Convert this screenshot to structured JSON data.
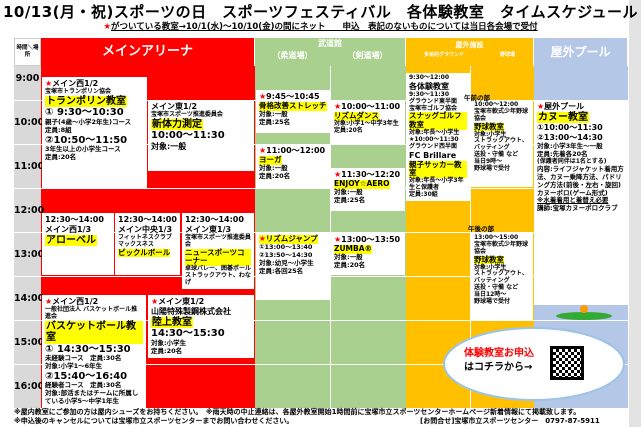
{
  "header": {
    "title": "10/13(月・祝)スポーツの日　スポーツフェスティバル　各体験教室　タイムスケジュール",
    "star": "★",
    "note": "がついている教室→10/1(水)～10/10(金)の間にネット　　申込　表記のないものについては当日各会場で受付"
  },
  "columns": {
    "corner": "時間＼場所",
    "main": "メインアリーナ",
    "budokan": "武道館",
    "judo": "（柔道場）",
    "kendo": "（剣道場）",
    "outdoor": "屋外施設",
    "ground": "多目的グラウンド",
    "baseball": "野球場",
    "pool": "屋外プール"
  },
  "times": [
    "9:00",
    "10:00",
    "11:00",
    "12:00",
    "13:00",
    "14:00",
    "15:00",
    "16:00"
  ],
  "colors": {
    "main": "#ff0000",
    "budokan": "#a9d08e",
    "outdoor": "#ffc000",
    "pool": "#b4c7e7",
    "time": "#d9d9d9",
    "highlight": "#ffff00"
  },
  "events": [
    {
      "star": true,
      "lines": [
        {
          "r": "venue",
          "t": "メイン西1/2"
        },
        {
          "r": "org",
          "t": "宝塚市トランポリン協会"
        },
        {
          "r": "title",
          "t": "トランポリン教室"
        },
        {
          "r": "time",
          "t": "① 9:30～10:30"
        },
        {
          "r": "note",
          "t": "親子(4歳～小学2年生)コース"
        },
        {
          "r": "note",
          "t": "定員:8組"
        },
        {
          "r": "time",
          "t": "②10:50～11:50"
        },
        {
          "r": "note",
          "t": "3年生以上の小学生コース"
        },
        {
          "r": "note",
          "t": "定員:20名"
        }
      ]
    },
    {
      "star": false,
      "lines": [
        {
          "r": "venue",
          "t": "メイン東1/2"
        },
        {
          "r": "org",
          "t": "宝塚市スポーツ推進委員会"
        },
        {
          "r": "title",
          "t": "新体力測定"
        },
        {
          "r": "time",
          "t": "10:00～11:30"
        },
        {
          "r": "lbl",
          "t": "対象:一般"
        }
      ]
    },
    {
      "star": false,
      "lines": [
        {
          "r": "stime",
          "t": "12:30～14:00"
        },
        {
          "r": "venue",
          "t": "メイン西1/3"
        },
        {
          "r": "title",
          "t": "アローベル"
        }
      ]
    },
    {
      "star": false,
      "lines": [
        {
          "r": "stime",
          "t": "12:30～14:00"
        },
        {
          "r": "venue",
          "t": "メイン中央1/3"
        },
        {
          "r": "org",
          "t": "フィットネスクラブマックスネス"
        },
        {
          "r": "stitle",
          "t": "ピックルボール"
        }
      ]
    },
    {
      "star": false,
      "lines": [
        {
          "r": "stime",
          "t": "12:30～14:00"
        },
        {
          "r": "venue",
          "t": "メイン東1/3"
        },
        {
          "r": "org",
          "t": "宝塚市スポーツ推進委員会"
        },
        {
          "r": "stitle",
          "t": "ニュースポーツコーナー"
        },
        {
          "r": "org",
          "t": "卓球バレー、囲碁ボール"
        },
        {
          "r": "org",
          "t": "ストラックアウト、わなげ"
        }
      ]
    },
    {
      "star": true,
      "lines": [
        {
          "r": "venue",
          "t": "メイン西1/2"
        },
        {
          "r": "org",
          "t": "一般社団法人 バスケットボール推進会"
        },
        {
          "r": "title",
          "t": "バスケットボール教室"
        },
        {
          "r": "time",
          "t": "① 14:30～15:30"
        },
        {
          "r": "note",
          "t": "未経験コース　定員:30名"
        },
        {
          "r": "note",
          "t": "対象:小学1～6年生"
        },
        {
          "r": "time",
          "t": "②15:40～16:40"
        },
        {
          "r": "note",
          "t": "経験者コース　定員:30名"
        },
        {
          "r": "note",
          "t": "対象:部活またはチームに所属している小学5～中学1年生"
        }
      ]
    },
    {
      "star": true,
      "lines": [
        {
          "r": "venue",
          "t": "メイン東1/2"
        },
        {
          "r": "lbl",
          "t": "山陽特殊製鋼株式会社"
        },
        {
          "r": "title",
          "t": "陸上教室"
        },
        {
          "r": "time",
          "t": "14:30～15:30"
        },
        {
          "r": "note",
          "t": "対象:小学生"
        },
        {
          "r": "note",
          "t": "定員:20名"
        }
      ]
    },
    {
      "star": true,
      "lines": [
        {
          "r": "stime",
          "t": "9:45～10:45"
        },
        {
          "r": "stitle",
          "t": "骨格改善ストレッチ"
        },
        {
          "r": "note",
          "t": "対象:一般"
        },
        {
          "r": "note",
          "t": "定員:25名"
        }
      ]
    },
    {
      "star": true,
      "lines": [
        {
          "r": "stime",
          "t": "11:00～12:00"
        },
        {
          "r": "stitle",
          "t": "ヨーガ"
        },
        {
          "r": "note",
          "t": "対象:一般"
        },
        {
          "r": "note",
          "t": "定員:20名"
        }
      ]
    },
    {
      "star": true,
      "lines": [
        {
          "r": "stitle",
          "t": "リズムジャンプ"
        },
        {
          "r": "note",
          "t": "①13:00～13:40"
        },
        {
          "r": "note",
          "t": "②13:50～14:30"
        },
        {
          "r": "note",
          "t": "対象:幼児～小学生"
        },
        {
          "r": "note",
          "t": "定員:各回25名"
        }
      ]
    },
    {
      "star": true,
      "lines": [
        {
          "r": "stime",
          "t": "10:00～11:00"
        },
        {
          "r": "stitle",
          "t": "リズムダンス"
        },
        {
          "r": "org",
          "t": "対象:小学1～中学3年生"
        },
        {
          "r": "org",
          "t": "定員:20名"
        }
      ]
    },
    {
      "star": true,
      "lines": [
        {
          "r": "stime",
          "t": "11:30～12:20"
        },
        {
          "r": "stitle",
          "t": "ENJOY☆AERO"
        },
        {
          "r": "note",
          "t": "対象:一般"
        },
        {
          "r": "note",
          "t": "定員:25名"
        }
      ]
    },
    {
      "star": true,
      "lines": [
        {
          "r": "stime",
          "t": "13:00～13:50"
        },
        {
          "r": "stitle",
          "t": "ZUMBA®"
        },
        {
          "r": "note",
          "t": "対象:一般"
        },
        {
          "r": "note",
          "t": "定員:20名"
        }
      ]
    },
    {
      "star": false,
      "lines": [
        {
          "r": "org",
          "t": "9:30～12:00"
        },
        {
          "r": "stime",
          "t": "各体験教室"
        },
        {
          "r": "org",
          "t": "9:30～11:30"
        },
        {
          "r": "org",
          "t": "グラウンド東半面"
        },
        {
          "r": "org",
          "t": "宝塚市ゴルフ協会"
        },
        {
          "r": "stitle",
          "t": "スナッグゴルフ教室"
        },
        {
          "r": "org",
          "t": "対象:年長～小学生"
        },
        {
          "r": "org",
          "t": "★10:00～11:30"
        },
        {
          "r": "org",
          "t": "グラウンド西半面"
        },
        {
          "r": "stime",
          "t": "FC Brillare"
        },
        {
          "r": "stitle",
          "t": "親子サッカー教室"
        },
        {
          "r": "org",
          "t": "対象:年長～小学3年生と保護者"
        },
        {
          "r": "org",
          "t": "定員:30組"
        }
      ]
    },
    {
      "star": false,
      "lines": [
        {
          "r": "org",
          "t": "10:00～12:00"
        },
        {
          "r": "org",
          "t": "宝塚市軟式少年野球協会"
        },
        {
          "r": "stitle",
          "t": "野球教室"
        },
        {
          "r": "org",
          "t": "対象:小学生"
        },
        {
          "r": "org",
          "t": "ストラックアウト、バッティング"
        },
        {
          "r": "org",
          "t": "送投・守備 など"
        },
        {
          "r": "org",
          "t": "当日9時～"
        },
        {
          "r": "org",
          "t": "野球場で受付"
        }
      ]
    },
    {
      "star": false,
      "lines": [
        {
          "r": "org",
          "t": "13:00～15:00"
        },
        {
          "r": "org",
          "t": "宝塚市軟式少年野球協会"
        },
        {
          "r": "stitle",
          "t": "野球教室"
        },
        {
          "r": "org",
          "t": "対象:小学生"
        },
        {
          "r": "org",
          "t": "ストラックアウト、バッティング"
        },
        {
          "r": "org",
          "t": "送投・守備 など"
        },
        {
          "r": "org",
          "t": "当日12時～"
        },
        {
          "r": "org",
          "t": "野球場で受付"
        }
      ]
    },
    {
      "star": true,
      "lines": [
        {
          "r": "venue",
          "t": "屋外プール"
        },
        {
          "r": "title",
          "t": "カヌー教室"
        },
        {
          "r": "stime",
          "t": "①10:00～11:30"
        },
        {
          "r": "stime",
          "t": "②13:00～14:30"
        },
        {
          "r": "note",
          "t": "対象:小学3年生～一般"
        },
        {
          "r": "note",
          "t": "定員:先着各20名"
        },
        {
          "r": "org",
          "t": "(保護者同伴は1名とする)"
        },
        {
          "r": "note",
          "t": "内容:ライフジャケット着用方法、カヌー乗降方法、パドリング方法(前後・左右・旋回)"
        },
        {
          "r": "note",
          "t": "カヌーポロ(ゲーム形式)"
        },
        {
          "r": "ul",
          "t": "※水着着用と着替え必要"
        },
        {
          "r": "note",
          "t": "講師:宝塚カヌーポロクラブ"
        }
      ]
    }
  ],
  "labels": {
    "morning": "午前の部",
    "afternoon": "午後の部"
  },
  "cta": {
    "line1": "体験教室お申込",
    "line2": "はコチラから→"
  },
  "footer": {
    "line1": "※屋内教室にご参加の方は屋内シューズをお持ちください。　※雨天時の中止連絡は、各屋外教室開始1時間前に宝塚市立スポーツセンターホームページ新着情報にて掲載致します。",
    "line2": "※申込後のキャンセルについては宝塚市立スポーツセンターまでお問い合わせください。",
    "contact": "[お問合せ]宝塚市立スポーツセンター　0797-87-5911"
  }
}
